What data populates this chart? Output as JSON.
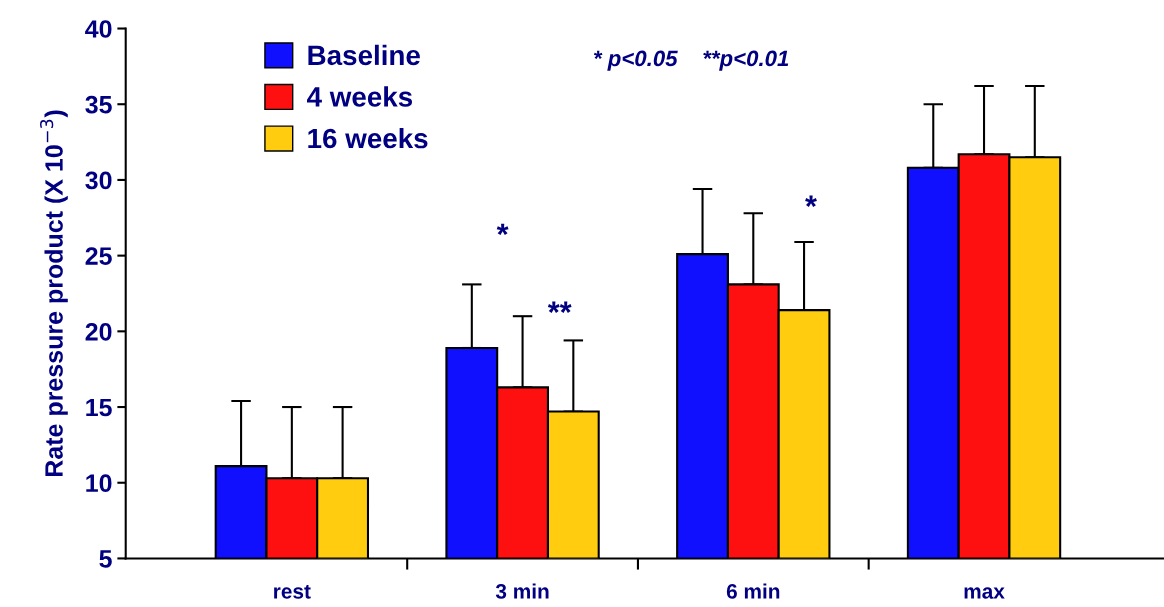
{
  "chart_data": {
    "type": "bar",
    "ylabel": "Rate pressure product (X 10$^{−3}$)",
    "categories": [
      "rest",
      "3 min",
      "6 min",
      "max"
    ],
    "series": [
      {
        "name": "Baseline",
        "color": "#1010ff",
        "values": [
          11.1,
          18.9,
          25.1,
          30.8
        ],
        "errors": [
          [
            11.1,
            15.4
          ],
          [
            18.9,
            23.1
          ],
          [
            25.1,
            29.4
          ],
          [
            30.8,
            35.0
          ]
        ]
      },
      {
        "name": "4 weeks",
        "color": "#ff1010",
        "values": [
          10.3,
          16.3,
          23.1,
          31.7
        ],
        "errors": [
          [
            10.3,
            15.0
          ],
          [
            16.3,
            21.0
          ],
          [
            23.1,
            27.8
          ],
          [
            31.7,
            36.2
          ]
        ]
      },
      {
        "name": "16 weeks",
        "color": "#ffcc10",
        "values": [
          10.3,
          14.7,
          21.4,
          31.5
        ],
        "errors": [
          [
            10.3,
            15.0
          ],
          [
            14.7,
            19.4
          ],
          [
            21.4,
            25.9
          ],
          [
            31.5,
            36.2
          ]
        ]
      }
    ],
    "ylim": [
      5,
      40
    ],
    "yticks": [
      5,
      10,
      15,
      20,
      25,
      30,
      35,
      40
    ],
    "grid": false,
    "legend": "top left",
    "annotations": [
      "* p<0.05    **p<0.01",
      "*",
      "**",
      "*"
    ]
  }
}
